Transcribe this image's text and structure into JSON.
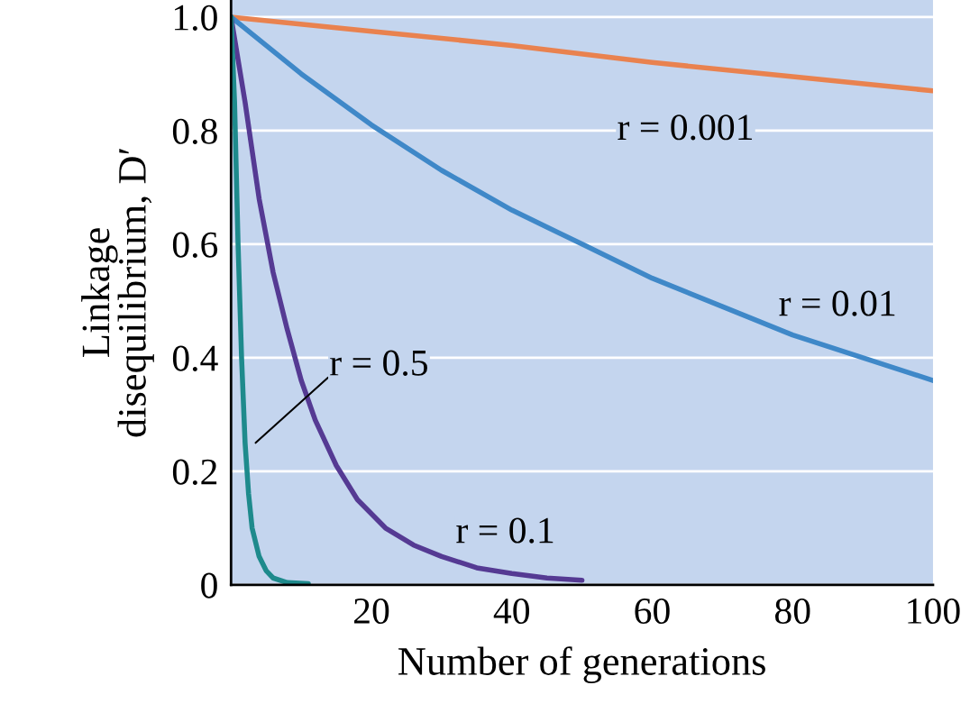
{
  "chart_data": {
    "type": "line",
    "xlabel": "Number of generations",
    "ylabel": "Linkage\ndisequilibrium, D′",
    "series": [
      {
        "name": "r = 0.001",
        "color": "#e9824f",
        "x": [
          0,
          20,
          40,
          60,
          80,
          100
        ],
        "values": [
          1.0,
          0.975,
          0.95,
          0.92,
          0.895,
          0.87
        ]
      },
      {
        "name": "r = 0.01",
        "color": "#3f88c8",
        "x": [
          0,
          5,
          10,
          20,
          30,
          40,
          50,
          60,
          70,
          80,
          90,
          100
        ],
        "values": [
          1.0,
          0.95,
          0.9,
          0.81,
          0.73,
          0.66,
          0.6,
          0.54,
          0.49,
          0.44,
          0.4,
          0.36
        ]
      },
      {
        "name": "r = 0.1",
        "color": "#553a93",
        "x": [
          0,
          2,
          4,
          6,
          8,
          10,
          12,
          15,
          18,
          22,
          26,
          30,
          35,
          40,
          45,
          50
        ],
        "values": [
          1.0,
          0.85,
          0.68,
          0.55,
          0.45,
          0.36,
          0.29,
          0.21,
          0.15,
          0.1,
          0.07,
          0.05,
          0.03,
          0.02,
          0.012,
          0.008
        ]
      },
      {
        "name": "r = 0.5",
        "color": "#1e8a8c",
        "x": [
          0,
          0.5,
          1,
          1.5,
          2,
          2.5,
          3,
          4,
          5,
          6,
          8,
          11
        ],
        "values": [
          1.0,
          0.85,
          0.6,
          0.4,
          0.25,
          0.16,
          0.1,
          0.05,
          0.025,
          0.012,
          0.004,
          0.002
        ]
      }
    ],
    "xlim": [
      0,
      100
    ],
    "ylim": [
      0,
      1.03
    ],
    "xticks": [
      20,
      40,
      60,
      80,
      100
    ],
    "yticks": [
      0,
      0.2,
      0.4,
      0.6,
      0.8,
      {
        "value": 1.0,
        "label": "1.0"
      }
    ],
    "grid": "y",
    "marker": "none",
    "line_style": "solid"
  }
}
